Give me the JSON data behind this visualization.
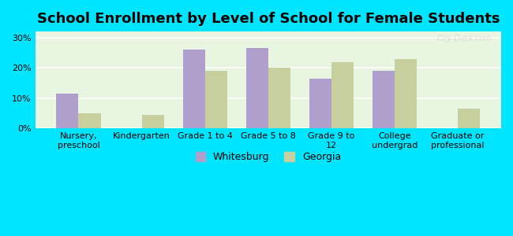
{
  "title": "School Enrollment by Level of School for Female Students",
  "categories": [
    "Nursery,\npreschool",
    "Kindergarten",
    "Grade 1 to 4",
    "Grade 5 to 8",
    "Grade 9 to\n12",
    "College\nundergrad",
    "Graduate or\nprofessional"
  ],
  "whitesburg": [
    11.5,
    0,
    26.0,
    26.5,
    16.5,
    19.0,
    0
  ],
  "georgia": [
    5.0,
    4.5,
    19.0,
    20.0,
    22.0,
    23.0,
    6.5
  ],
  "whitesburg_color": "#b09fcc",
  "georgia_color": "#c8cf9f",
  "background_outer": "#00e5ff",
  "background_inner": "#e8f5e0",
  "grid_color": "#ffffff",
  "yticks": [
    0,
    10,
    20,
    30
  ],
  "ylim": [
    0,
    32
  ],
  "legend_whitesburg": "Whitesburg",
  "legend_georgia": "Georgia",
  "title_fontsize": 13,
  "axis_fontsize": 8,
  "legend_fontsize": 9,
  "bar_width": 0.35
}
